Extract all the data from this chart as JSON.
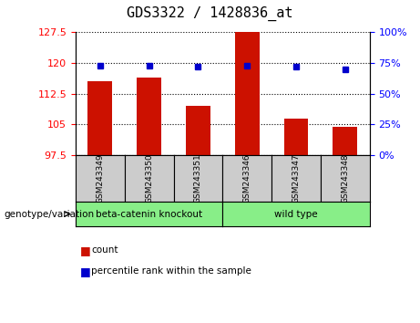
{
  "title": "GDS3322 / 1428836_at",
  "samples": [
    "GSM243349",
    "GSM243350",
    "GSM243351",
    "GSM243346",
    "GSM243347",
    "GSM243348"
  ],
  "count_values": [
    115.5,
    116.5,
    109.5,
    127.5,
    106.5,
    104.5
  ],
  "percentile_values": [
    73,
    73,
    72,
    73,
    72,
    70
  ],
  "ylim_left": [
    97.5,
    127.5
  ],
  "ylim_right": [
    0,
    100
  ],
  "yticks_left": [
    97.5,
    105.0,
    112.5,
    120.0,
    127.5
  ],
  "yticks_right": [
    0,
    25,
    50,
    75,
    100
  ],
  "bar_color": "#cc1100",
  "marker_color": "#0000cc",
  "group1_label": "beta-catenin knockout",
  "group2_label": "wild type",
  "group_bg_color": "#88ee88",
  "sample_bg_color": "#cccccc",
  "legend_count_label": "count",
  "legend_percentile_label": "percentile rank within the sample",
  "genotype_label": "genotype/variation"
}
